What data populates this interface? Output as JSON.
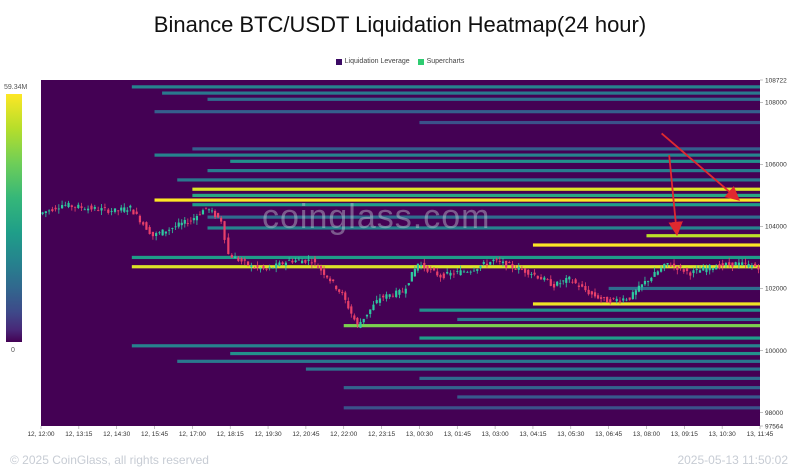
{
  "chart_data": {
    "type": "heatmap",
    "title": "Binance BTC/USDT Liquidation Heatmap(24 hour)",
    "legend": [
      {
        "label": "Liquidation Leverage",
        "color": "#3b0a64"
      },
      {
        "label": "Supercharts",
        "color": "#2ecc71"
      }
    ],
    "colorbar": {
      "min_label": "0",
      "max_label": "59.34M",
      "max_value": 59.34
    },
    "ylim": [
      97564,
      108722
    ],
    "y_ticks": [
      "108722",
      "108000",
      "106000",
      "104000",
      "102000",
      "100000",
      "98000",
      "97564"
    ],
    "x_ticks": [
      "12, 12:00",
      "12, 13:15",
      "12, 14:30",
      "12, 15:45",
      "12, 17:00",
      "12, 18:15",
      "12, 19:30",
      "12, 20:45",
      "12, 22:00",
      "12, 23:15",
      "13, 00:30",
      "13, 01:45",
      "13, 03:00",
      "13, 04:15",
      "13, 05:30",
      "13, 06:45",
      "13, 08:00",
      "13, 09:15",
      "13, 10:30",
      "13, 11:45"
    ],
    "price_series": {
      "x": [
        "12, 12:00",
        "12, 12:45",
        "12, 13:30",
        "12, 14:30",
        "12, 15:00",
        "12, 15:45",
        "12, 16:30",
        "12, 17:00",
        "12, 17:30",
        "12, 18:00",
        "12, 18:15",
        "12, 19:00",
        "12, 19:30",
        "12, 20:15",
        "12, 21:00",
        "12, 21:30",
        "12, 22:00",
        "12, 22:30",
        "12, 23:15",
        "13, 00:00",
        "13, 00:30",
        "13, 01:15",
        "13, 02:15",
        "13, 03:00",
        "13, 04:15",
        "13, 05:00",
        "13, 05:30",
        "13, 06:15",
        "13, 06:45",
        "13, 07:30",
        "13, 08:00",
        "13, 08:45",
        "13, 09:30",
        "13, 10:15",
        "13, 11:00",
        "13, 11:45"
      ],
      "values": [
        104400,
        104700,
        104600,
        104500,
        104600,
        103700,
        104000,
        104200,
        104600,
        104200,
        103100,
        102700,
        102600,
        102900,
        102900,
        102400,
        101800,
        100800,
        101700,
        101900,
        102800,
        102400,
        102600,
        102900,
        102500,
        102100,
        102300,
        101800,
        101600,
        101700,
        102200,
        102800,
        102500,
        102700,
        102800,
        102700
      ]
    },
    "bands": [
      {
        "y": 108500,
        "start": "12, 15:00",
        "intensity": 0.45
      },
      {
        "y": 108300,
        "start": "12, 16:00",
        "intensity": 0.4
      },
      {
        "y": 108100,
        "start": "12, 17:30",
        "intensity": 0.35
      },
      {
        "y": 107700,
        "start": "12, 15:45",
        "intensity": 0.3
      },
      {
        "y": 107350,
        "start": "13, 00:30",
        "intensity": 0.25
      },
      {
        "y": 106500,
        "start": "12, 17:00",
        "intensity": 0.3
      },
      {
        "y": 106300,
        "start": "12, 15:45",
        "intensity": 0.45
      },
      {
        "y": 106100,
        "start": "12, 18:15",
        "intensity": 0.5
      },
      {
        "y": 105800,
        "start": "12, 17:30",
        "intensity": 0.42
      },
      {
        "y": 105500,
        "start": "12, 16:30",
        "intensity": 0.4
      },
      {
        "y": 105200,
        "start": "12, 17:00",
        "intensity": 0.95
      },
      {
        "y": 105000,
        "start": "12, 17:00",
        "intensity": 0.6
      },
      {
        "y": 104850,
        "start": "12, 15:45",
        "intensity": 1.0
      },
      {
        "y": 104700,
        "start": "12, 17:00",
        "intensity": 0.55
      },
      {
        "y": 104300,
        "start": "12, 17:30",
        "intensity": 0.35
      },
      {
        "y": 103950,
        "start": "12, 17:30",
        "intensity": 0.45
      },
      {
        "y": 103700,
        "start": "13, 08:00",
        "intensity": 0.9
      },
      {
        "y": 103400,
        "start": "13, 04:15",
        "intensity": 1.0
      },
      {
        "y": 103000,
        "start": "12, 15:00",
        "intensity": 0.55
      },
      {
        "y": 102700,
        "start": "12, 15:00",
        "intensity": 0.95
      },
      {
        "y": 102000,
        "start": "13, 06:45",
        "intensity": 0.35
      },
      {
        "y": 101500,
        "start": "13, 04:15",
        "intensity": 0.98
      },
      {
        "y": 101300,
        "start": "13, 00:30",
        "intensity": 0.5
      },
      {
        "y": 101000,
        "start": "13, 01:45",
        "intensity": 0.4
      },
      {
        "y": 100800,
        "start": "12, 22:00",
        "intensity": 0.8
      },
      {
        "y": 100400,
        "start": "13, 00:30",
        "intensity": 0.55
      },
      {
        "y": 100150,
        "start": "12, 15:00",
        "intensity": 0.45
      },
      {
        "y": 99900,
        "start": "12, 18:15",
        "intensity": 0.5
      },
      {
        "y": 99650,
        "start": "12, 16:30",
        "intensity": 0.4
      },
      {
        "y": 99400,
        "start": "12, 20:45",
        "intensity": 0.38
      },
      {
        "y": 99100,
        "start": "13, 00:30",
        "intensity": 0.35
      },
      {
        "y": 98800,
        "start": "12, 22:00",
        "intensity": 0.32
      },
      {
        "y": 98500,
        "start": "13, 01:45",
        "intensity": 0.28
      },
      {
        "y": 98150,
        "start": "12, 22:00",
        "intensity": 0.25
      }
    ],
    "annotations": [
      {
        "type": "arrow",
        "from": {
          "x": "13, 08:30",
          "y": 107000
        },
        "to": {
          "x": "13, 11:00",
          "y": 104900
        },
        "color": "#e0292f"
      },
      {
        "type": "arrow",
        "from": {
          "x": "13, 08:45",
          "y": 106300
        },
        "to": {
          "x": "13, 09:00",
          "y": 103800
        },
        "color": "#e0292f"
      }
    ],
    "colors": {
      "background": "#440154",
      "price_up": "#2ec9a0",
      "price_down": "#e8406a"
    }
  },
  "watermark": "coinglass.com",
  "footer": {
    "copyright": "© 2025 CoinGlass, all rights reserved",
    "timestamp": "2025-05-13 11:50:02"
  }
}
